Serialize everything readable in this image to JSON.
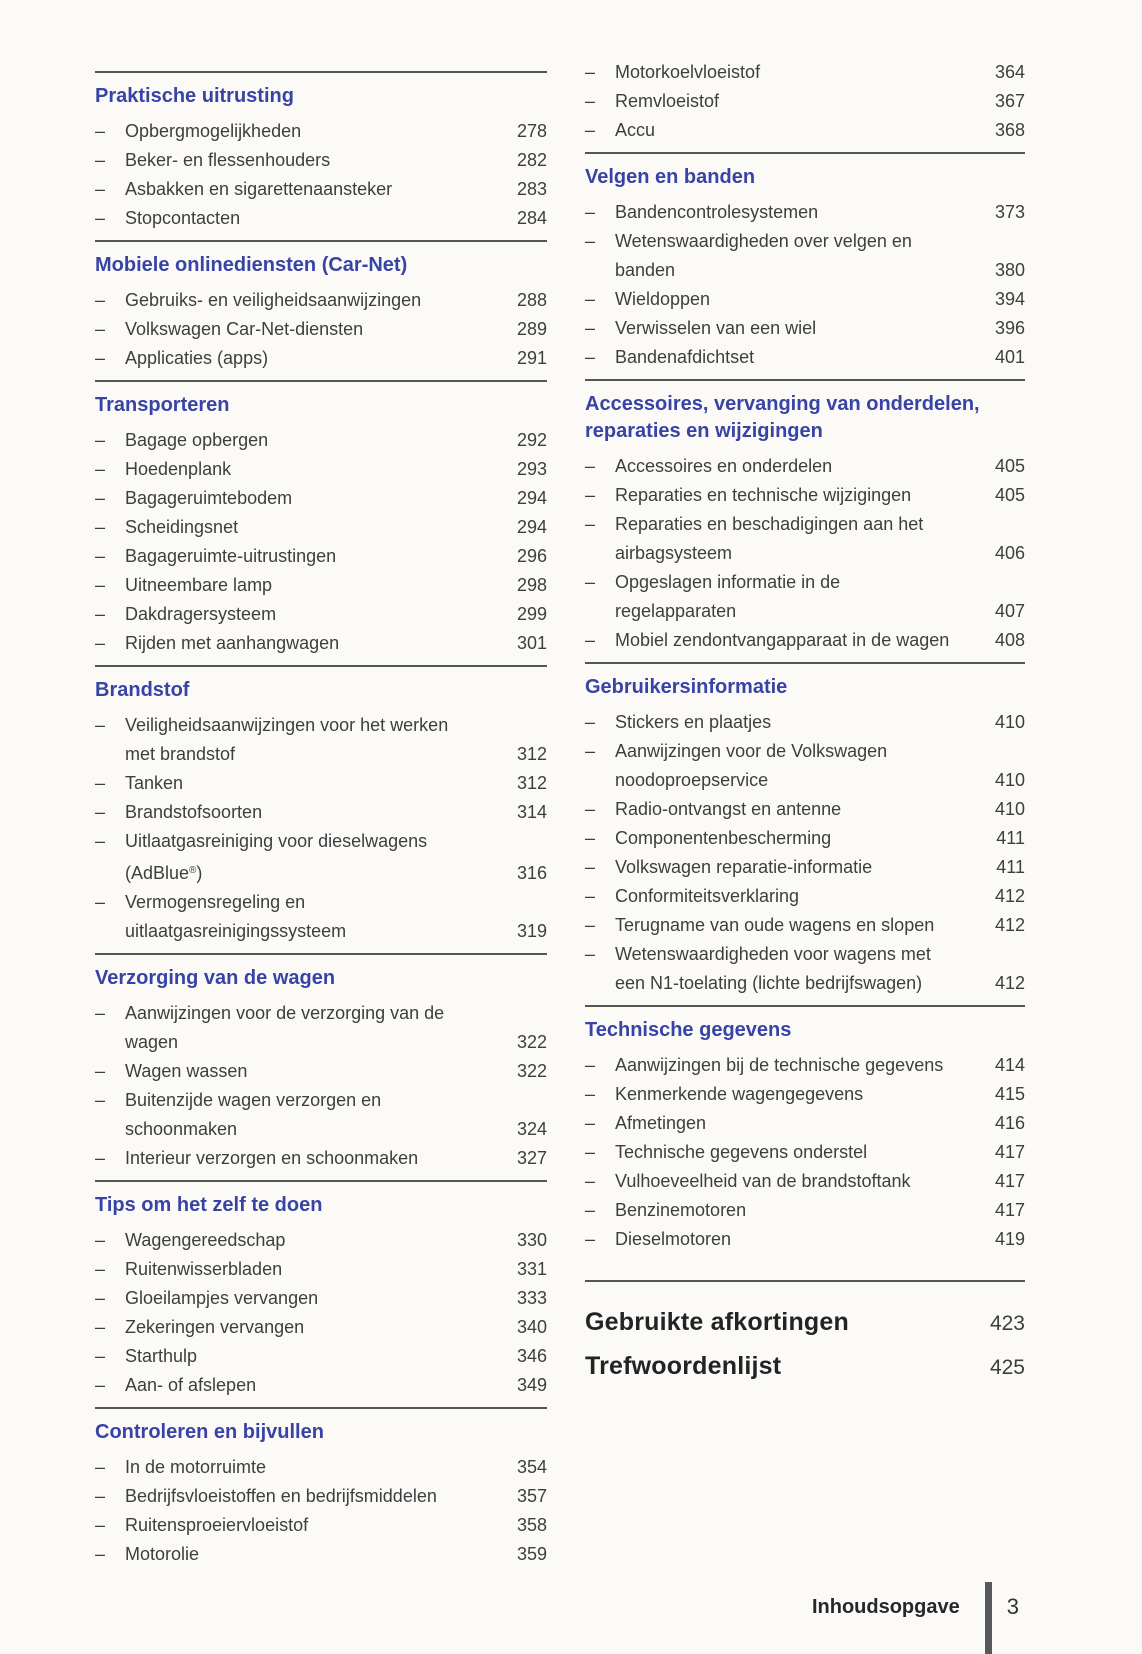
{
  "colors": {
    "heading_accent": "#3843a6",
    "body_text": "#3e3e40",
    "major_text": "#232326",
    "rule": "#56565a",
    "paper": "#fbfaf7",
    "footer_bar": "#58585a"
  },
  "footer": {
    "label": "Inhoudsopgave",
    "page": "3"
  },
  "columns": {
    "left": {
      "sections": [
        {
          "rule": true,
          "heading": "Praktische uitrusting",
          "items": [
            {
              "lines": [
                "Opbergmogelijkheden"
              ],
              "page": "278"
            },
            {
              "lines": [
                "Beker- en flessenhouders"
              ],
              "page": "282"
            },
            {
              "lines": [
                "Asbakken en sigarettenaansteker"
              ],
              "page": "283"
            },
            {
              "lines": [
                "Stopcontacten"
              ],
              "page": "284"
            }
          ]
        },
        {
          "rule": true,
          "heading": "Mobiele onlinediensten (Car-Net)",
          "items": [
            {
              "lines": [
                "Gebruiks- en veiligheidsaanwijzingen"
              ],
              "page": "288"
            },
            {
              "lines": [
                "Volkswagen Car-Net-diensten"
              ],
              "page": "289"
            },
            {
              "lines": [
                "Applicaties (apps)"
              ],
              "page": "291"
            }
          ]
        },
        {
          "rule": true,
          "heading": "Transporteren",
          "items": [
            {
              "lines": [
                "Bagage opbergen"
              ],
              "page": "292"
            },
            {
              "lines": [
                "Hoedenplank"
              ],
              "page": "293"
            },
            {
              "lines": [
                "Bagageruimtebodem"
              ],
              "page": "294"
            },
            {
              "lines": [
                "Scheidingsnet"
              ],
              "page": "294"
            },
            {
              "lines": [
                "Bagageruimte-uitrustingen"
              ],
              "page": "296"
            },
            {
              "lines": [
                "Uitneembare lamp"
              ],
              "page": "298"
            },
            {
              "lines": [
                "Dakdragersysteem"
              ],
              "page": "299"
            },
            {
              "lines": [
                "Rijden met aanhangwagen"
              ],
              "page": "301"
            }
          ]
        },
        {
          "rule": true,
          "heading": "Brandstof",
          "items": [
            {
              "lines": [
                "Veiligheidsaanwijzingen voor het werken",
                "met brandstof"
              ],
              "page": "312"
            },
            {
              "lines": [
                "Tanken"
              ],
              "page": "312"
            },
            {
              "lines": [
                "Brandstofsoorten"
              ],
              "page": "314"
            },
            {
              "lines": [
                "Uitlaatgasreiniging voor dieselwagens",
                "(AdBlue®)"
              ],
              "page": "316"
            },
            {
              "lines": [
                "Vermogensregeling en",
                "uitlaatgasreinigingssysteem"
              ],
              "page": "319"
            }
          ]
        },
        {
          "rule": true,
          "heading": "Verzorging van de wagen",
          "items": [
            {
              "lines": [
                "Aanwijzingen voor de verzorging van de",
                "wagen"
              ],
              "page": "322"
            },
            {
              "lines": [
                "Wagen wassen"
              ],
              "page": "322"
            },
            {
              "lines": [
                "Buitenzijde wagen verzorgen en",
                "schoonmaken"
              ],
              "page": "324"
            },
            {
              "lines": [
                "Interieur verzorgen en schoonmaken"
              ],
              "page": "327"
            }
          ]
        },
        {
          "rule": true,
          "heading": "Tips om het zelf te doen",
          "items": [
            {
              "lines": [
                "Wagengereedschap"
              ],
              "page": "330"
            },
            {
              "lines": [
                "Ruitenwisserbladen"
              ],
              "page": "331"
            },
            {
              "lines": [
                "Gloeilampjes vervangen"
              ],
              "page": "333"
            },
            {
              "lines": [
                "Zekeringen vervangen"
              ],
              "page": "340"
            },
            {
              "lines": [
                "Starthulp"
              ],
              "page": "346"
            },
            {
              "lines": [
                "Aan- of afslepen"
              ],
              "page": "349"
            }
          ]
        },
        {
          "rule": true,
          "heading": "Controleren en bijvullen",
          "items": [
            {
              "lines": [
                "In de motorruimte"
              ],
              "page": "354"
            },
            {
              "lines": [
                "Bedrijfsvloeistoffen en bedrijfsmiddelen"
              ],
              "page": "357"
            },
            {
              "lines": [
                "Ruitensproeiervloeistof"
              ],
              "page": "358"
            },
            {
              "lines": [
                "Motorolie"
              ],
              "page": "359"
            }
          ]
        }
      ]
    },
    "right": {
      "sections": [
        {
          "rule": false,
          "heading": null,
          "items": [
            {
              "lines": [
                "Motorkoelvloeistof"
              ],
              "page": "364"
            },
            {
              "lines": [
                "Remvloeistof"
              ],
              "page": "367"
            },
            {
              "lines": [
                "Accu"
              ],
              "page": "368"
            }
          ]
        },
        {
          "rule": true,
          "heading": "Velgen en banden",
          "items": [
            {
              "lines": [
                "Bandencontrolesystemen"
              ],
              "page": "373"
            },
            {
              "lines": [
                "Wetenswaardigheden over velgen en",
                "banden"
              ],
              "page": "380"
            },
            {
              "lines": [
                "Wieldoppen"
              ],
              "page": "394"
            },
            {
              "lines": [
                "Verwisselen van een wiel"
              ],
              "page": "396"
            },
            {
              "lines": [
                "Bandenafdichtset"
              ],
              "page": "401"
            }
          ]
        },
        {
          "rule": true,
          "heading": "Accessoires, vervanging van onderdelen, reparaties en wijzigingen",
          "items": [
            {
              "lines": [
                "Accessoires en onderdelen"
              ],
              "page": "405"
            },
            {
              "lines": [
                "Reparaties en technische wijzigingen"
              ],
              "page": "405"
            },
            {
              "lines": [
                "Reparaties en beschadigingen aan het",
                "airbagsysteem"
              ],
              "page": "406"
            },
            {
              "lines": [
                "Opgeslagen informatie in de",
                "regelapparaten"
              ],
              "page": "407"
            },
            {
              "lines": [
                "Mobiel zendontvangapparaat in de wagen"
              ],
              "page": "408"
            }
          ]
        },
        {
          "rule": true,
          "heading": "Gebruikersinformatie",
          "items": [
            {
              "lines": [
                "Stickers en plaatjes"
              ],
              "page": "410"
            },
            {
              "lines": [
                "Aanwijzingen voor de Volkswagen",
                "noodoproepservice"
              ],
              "page": "410"
            },
            {
              "lines": [
                "Radio-ontvangst en antenne"
              ],
              "page": "410"
            },
            {
              "lines": [
                "Componentenbescherming"
              ],
              "page": "411"
            },
            {
              "lines": [
                "Volkswagen reparatie-informatie"
              ],
              "page": "411"
            },
            {
              "lines": [
                "Conformiteitsverklaring"
              ],
              "page": "412"
            },
            {
              "lines": [
                "Terugname van oude wagens en slopen"
              ],
              "page": "412"
            },
            {
              "lines": [
                "Wetenswaardigheden voor wagens met",
                "een N1-toelating (lichte bedrijfswagen)"
              ],
              "page": "412"
            }
          ]
        },
        {
          "rule": true,
          "heading": "Technische gegevens",
          "items": [
            {
              "lines": [
                "Aanwijzingen bij de technische gegevens"
              ],
              "page": "414"
            },
            {
              "lines": [
                "Kenmerkende wagengegevens"
              ],
              "page": "415"
            },
            {
              "lines": [
                "Afmetingen"
              ],
              "page": "416"
            },
            {
              "lines": [
                "Technische gegevens onderstel"
              ],
              "page": "417"
            },
            {
              "lines": [
                "Vulhoeveelheid van de brandstoftank"
              ],
              "page": "417"
            },
            {
              "lines": [
                "Benzinemotoren"
              ],
              "page": "417"
            },
            {
              "lines": [
                "Dieselmotoren"
              ],
              "page": "419"
            }
          ]
        },
        {
          "type": "major",
          "rule": "major",
          "heading": "Gebruikte afkortingen",
          "page": "423"
        },
        {
          "type": "major",
          "heading": "Trefwoordenlijst",
          "page": "425"
        }
      ]
    }
  }
}
